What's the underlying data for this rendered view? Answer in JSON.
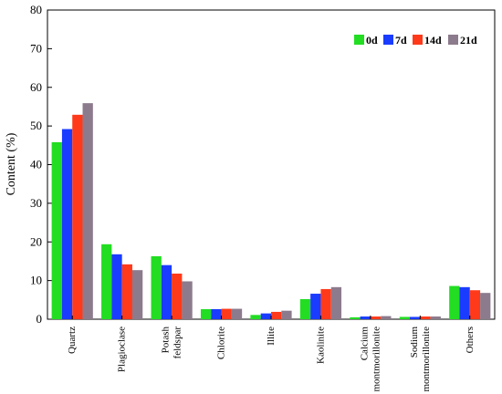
{
  "chart_data": {
    "type": "bar",
    "ylabel": "Content (%)",
    "xlabel": "",
    "ylim": [
      0,
      80
    ],
    "yticks": [
      0,
      10,
      20,
      30,
      40,
      50,
      60,
      70,
      80
    ],
    "grid": false,
    "legend_position": "top-right",
    "categories": [
      [
        "Quartz"
      ],
      [
        "Plagioclase"
      ],
      [
        "Potash",
        "feldspar"
      ],
      [
        "Chlorite"
      ],
      [
        "Illite"
      ],
      [
        "Kaolinite"
      ],
      [
        "Calcium",
        "montmorillonite"
      ],
      [
        "Sodium",
        "montmorillonite"
      ],
      [
        "Others"
      ]
    ],
    "series": [
      {
        "name": "0d",
        "color": "#22dd22",
        "values": [
          45.8,
          19.4,
          16.3,
          2.6,
          1.1,
          5.2,
          0.5,
          0.6,
          8.6
        ]
      },
      {
        "name": "7d",
        "color": "#1a3cff",
        "values": [
          49.2,
          16.8,
          14.0,
          2.6,
          1.5,
          6.6,
          0.7,
          0.6,
          8.3
        ]
      },
      {
        "name": "14d",
        "color": "#ff3a1a",
        "values": [
          52.9,
          14.2,
          11.8,
          2.7,
          1.9,
          7.8,
          0.7,
          0.7,
          7.5
        ]
      },
      {
        "name": "21d",
        "color": "#8c7b8c",
        "values": [
          55.9,
          12.7,
          9.8,
          2.7,
          2.2,
          8.3,
          0.8,
          0.7,
          6.8
        ]
      }
    ]
  }
}
